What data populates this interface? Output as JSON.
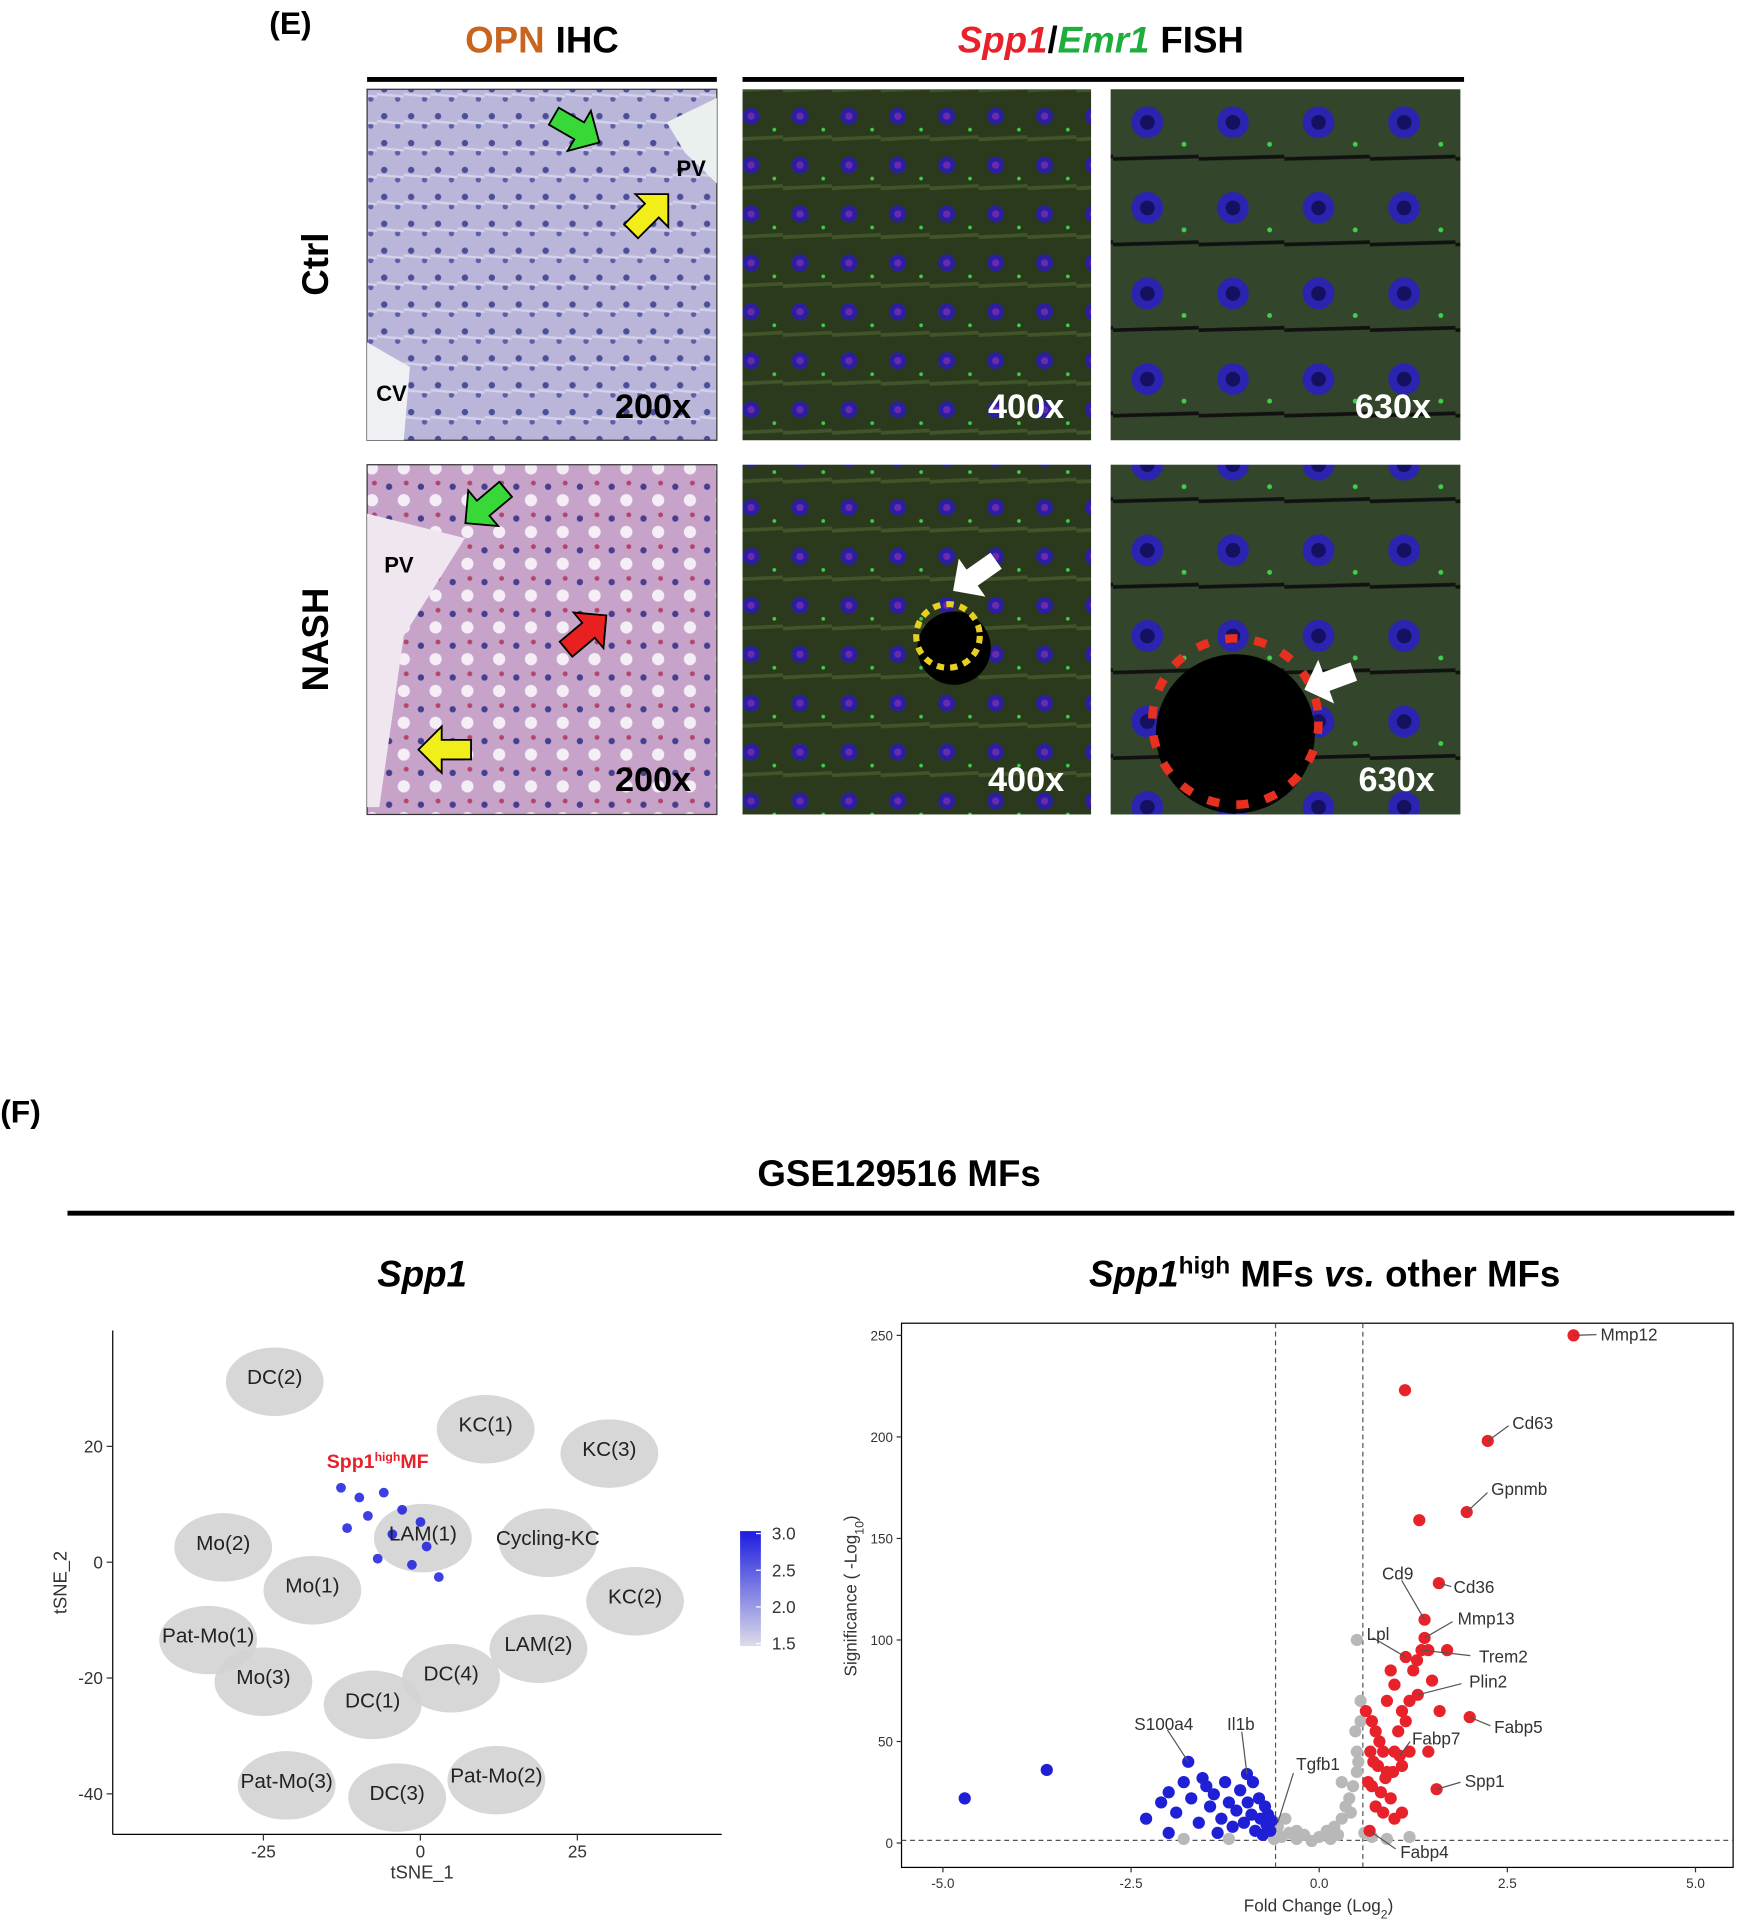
{
  "panel_e": {
    "label": "(E)",
    "header_ihc": [
      "OPN",
      "IHC"
    ],
    "header_fish": [
      "Spp1",
      "/",
      "Emr1",
      "FISH"
    ],
    "rows": [
      {
        "label": "Ctrl",
        "magnifications": [
          "200x",
          "400x",
          "630x"
        ],
        "annotations": [
          "PV",
          "CV"
        ]
      },
      {
        "label": "NASH",
        "magnifications": [
          "200x",
          "400x",
          "630x"
        ],
        "annotations": [
          "PV"
        ]
      }
    ]
  },
  "panel_f": {
    "label": "(F)",
    "title": "GSE129516 MFs"
  },
  "chart_data": [
    {
      "type": "scatter",
      "title": "Spp1",
      "xlabel": "tSNE_1",
      "ylabel": "tSNE_2",
      "xlim": [
        -49,
        48
      ],
      "ylim": [
        -47,
        40
      ],
      "xticks": [
        -25,
        0,
        25
      ],
      "yticks": [
        20,
        0,
        -20,
        -40
      ],
      "point_color": "#d3d3d3",
      "clusters": [
        {
          "text": "DC(2)",
          "x": -23.2,
          "y": 32
        },
        {
          "text": "KC(1)",
          "x": 10.4,
          "y": 23.8
        },
        {
          "text": "KC(3)",
          "x": 30.1,
          "y": 19.6
        },
        {
          "text": "LAM(1)",
          "x": 0.4,
          "y": 5
        },
        {
          "text": "Cycling-KC",
          "x": 20.3,
          "y": 4.2
        },
        {
          "text": "Mo(2)",
          "x": -31.4,
          "y": 3.4
        },
        {
          "text": "KC(2)",
          "x": 34.2,
          "y": -5.9
        },
        {
          "text": "Mo(1)",
          "x": -17.2,
          "y": -4
        },
        {
          "text": "Pat-Mo(1)",
          "x": -33.8,
          "y": -12.6
        },
        {
          "text": "LAM(2)",
          "x": 18.8,
          "y": -14.1
        },
        {
          "text": "Mo(3)",
          "x": -25,
          "y": -19.8
        },
        {
          "text": "DC(4)",
          "x": 4.9,
          "y": -19.2
        },
        {
          "text": "DC(1)",
          "x": -7.6,
          "y": -23.8
        },
        {
          "text": "Pat-Mo(3)",
          "x": -21.3,
          "y": -37.7
        },
        {
          "text": "DC(3)",
          "x": -3.7,
          "y": -39.8
        },
        {
          "text": "Pat-Mo(2)",
          "x": 12.1,
          "y": -36.8
        }
      ],
      "highlight": {
        "text": [
          "Spp1",
          "high",
          "MF"
        ],
        "x": -6.8,
        "y": 17.5,
        "color": "#e8222a"
      },
      "colorbar": {
        "lim": [
          1.5,
          3.0
        ],
        "ticks": [
          1.5,
          {
            "value": 2,
            "label": "2.0"
          },
          2.5,
          {
            "value": 3,
            "label": "3.0"
          }
        ],
        "colors": [
          "#dcdce8",
          "#1c1ce0"
        ]
      }
    },
    {
      "type": "scatter",
      "title_parts": [
        "Spp1",
        "high",
        " MFs ",
        "vs.",
        " other MFs"
      ],
      "xlabel_parts": [
        "Fold Change (Log",
        "2",
        ")"
      ],
      "ylabel_parts": [
        "Significance ( -Log",
        "10",
        ")"
      ],
      "xlim": [
        -5.55,
        5.5
      ],
      "ylim": [
        -12,
        256
      ],
      "xticks": [
        {
          "value": -5,
          "label": "-5.0"
        },
        -2.5,
        {
          "value": 0,
          "label": "0.0"
        },
        2.5,
        {
          "value": 5,
          "label": "5.0"
        }
      ],
      "yticks": [
        0,
        50,
        100,
        150,
        200,
        250
      ],
      "thresholds": {
        "x": [
          -0.58,
          0.58
        ],
        "y": 1.3
      },
      "series": [
        {
          "color": "#b8b8b8",
          "x": [
            -0.5,
            -0.4,
            -0.3,
            -0.2,
            -0.1,
            0.0,
            0.1,
            0.2,
            0.3,
            0.35,
            0.4,
            0.45,
            0.5,
            0.5,
            0.55,
            0.55,
            0.5,
            0.6,
            0.7,
            -0.55,
            -0.45,
            0.25,
            0.15,
            0.42,
            0.48,
            0.52,
            0.3,
            -0.3,
            -0.6,
            -1.8,
            -1.2,
            0.9,
            1.2,
            -0.55
          ],
          "values": [
            3,
            5,
            2,
            4,
            1,
            3,
            6,
            8,
            12,
            18,
            22,
            28,
            35,
            45,
            60,
            70,
            100,
            5,
            3,
            8,
            12,
            4,
            2,
            15,
            55,
            40,
            30,
            6,
            2,
            2,
            2,
            2,
            3,
            10
          ]
        },
        {
          "color": "#1f1fd6",
          "x": [
            -2.1,
            -2.0,
            -1.9,
            -1.8,
            -1.7,
            -1.6,
            -1.5,
            -1.45,
            -1.4,
            -1.3,
            -1.25,
            -1.2,
            -1.15,
            -1.1,
            -1.05,
            -1.0,
            -0.95,
            -0.9,
            -0.85,
            -0.8,
            -0.78,
            -0.75,
            -0.72,
            -0.7,
            -0.68,
            -0.65,
            -0.63,
            -1.35,
            -1.55,
            -2.3,
            -2.0,
            -0.88,
            -1.74,
            -0.96,
            -4.71,
            -3.62
          ],
          "values": [
            20,
            25,
            15,
            30,
            22,
            10,
            28,
            18,
            24,
            12,
            30,
            20,
            8,
            16,
            26,
            10,
            20,
            14,
            6,
            22,
            12,
            4,
            18,
            9,
            14,
            6,
            11,
            5,
            32,
            12,
            5,
            30,
            40,
            34,
            22,
            36
          ]
        },
        {
          "color": "#e8222a",
          "x": [
            0.7,
            0.75,
            0.8,
            0.85,
            0.72,
            0.78,
            0.9,
            0.65,
            0.7,
            0.82,
            0.95,
            1.0,
            1.05,
            1.1,
            1.2,
            1.25,
            0.95,
            1.0,
            0.9,
            1.3,
            1.45,
            1.15,
            1.6,
            1.2,
            0.75,
            0.85,
            1.0,
            0.68,
            0.88,
            1.1,
            1.45,
            1.5,
            1.7,
            0.62,
            1.1,
            0.98,
            3.38,
            2.24,
            1.96,
            1.4,
            1.59,
            1.4,
            1.36,
            1.15,
            1.31,
            2.0,
            1.07,
            1.56,
            0.67,
            1.14,
            1.33
          ],
          "values": [
            60,
            55,
            50,
            45,
            40,
            38,
            35,
            30,
            28,
            25,
            22,
            45,
            55,
            65,
            70,
            85,
            85,
            78,
            70,
            90,
            95,
            60,
            65,
            45,
            18,
            15,
            12,
            45,
            32,
            38,
            45,
            80,
            95,
            65,
            15,
            35,
            250,
            198,
            163,
            110,
            128,
            101,
            95,
            91.6,
            73,
            62,
            43,
            26.5,
            6,
            223,
            159
          ]
        }
      ],
      "annotations": [
        {
          "text": "Mmp12",
          "x": 3.38,
          "y": 250
        },
        {
          "text": "Cd63",
          "x": 2.24,
          "y": 198
        },
        {
          "text": "Gpnmb",
          "x": 1.96,
          "y": 163
        },
        {
          "text": "Cd9",
          "x": 1.4,
          "y": 110
        },
        {
          "text": "Cd36",
          "x": 1.59,
          "y": 128
        },
        {
          "text": "Mmp13",
          "x": 1.4,
          "y": 101
        },
        {
          "text": "Trem2",
          "x": 1.36,
          "y": 95
        },
        {
          "text": "Lpl",
          "x": 1.15,
          "y": 91.6
        },
        {
          "text": "Plin2",
          "x": 1.31,
          "y": 73
        },
        {
          "text": "Fabp5",
          "x": 2.0,
          "y": 62
        },
        {
          "text": "Fabp7",
          "x": 1.07,
          "y": 43
        },
        {
          "text": "Spp1",
          "x": 1.56,
          "y": 26.5
        },
        {
          "text": "Fabp4",
          "x": 0.67,
          "y": 6
        },
        {
          "text": "Tgfb1",
          "x": -0.55,
          "y": 10
        },
        {
          "text": "S100a4",
          "x": -1.74,
          "y": 40
        },
        {
          "text": "Il1b",
          "x": -0.96,
          "y": 34
        }
      ]
    }
  ]
}
